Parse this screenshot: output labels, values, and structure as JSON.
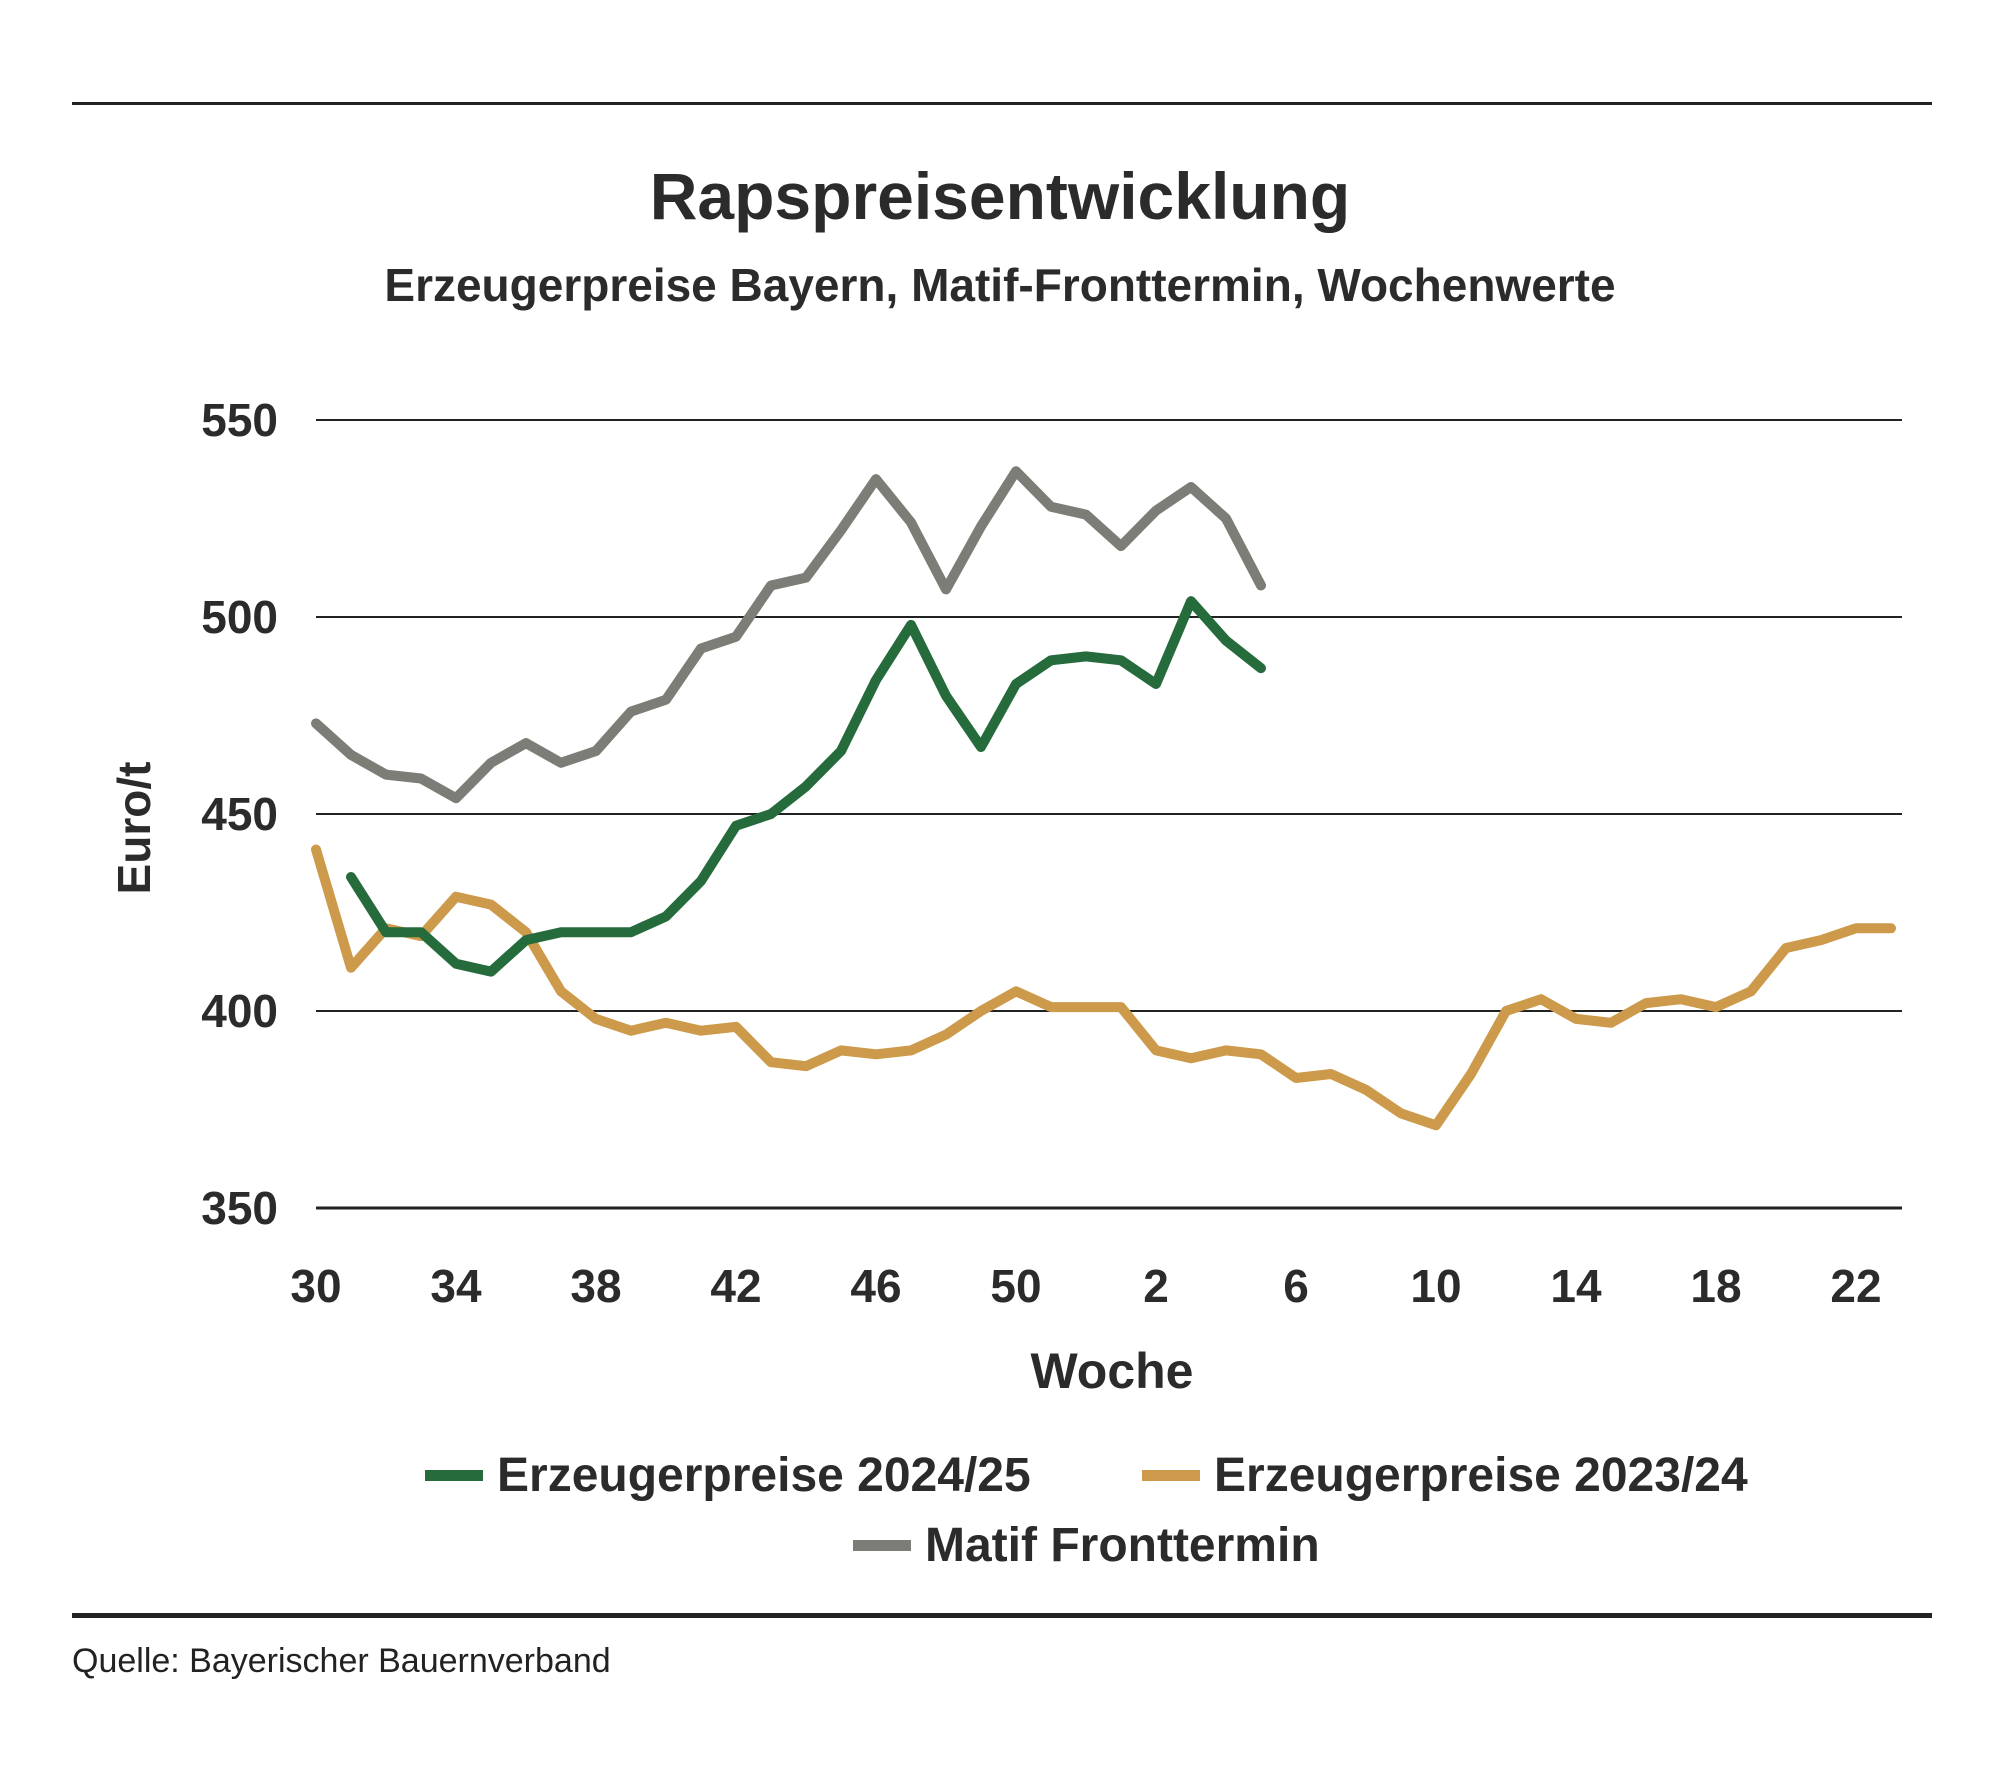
{
  "title": "Rapspreisentwicklung",
  "subtitle": "Erzeugerpreise Bayern, Matif-Fronttermin, Wochenwerte",
  "source": "Quelle: Bayerischer Bauernverband",
  "chart_data": {
    "type": "line",
    "title": "Rapspreisentwicklung",
    "subtitle": "Erzeugerpreise Bayern, Matif-Fronttermin, Wochenwerte",
    "xlabel": "Woche",
    "ylabel": "Euro/t",
    "ylim": [
      350,
      550
    ],
    "yticks": [
      350,
      400,
      450,
      500,
      550
    ],
    "xtick_labels": [
      "30",
      "34",
      "38",
      "42",
      "46",
      "50",
      "2",
      "6",
      "10",
      "14",
      "18",
      "22"
    ],
    "grid": "horizontal",
    "legend_position": "bottom",
    "series": [
      {
        "name": "Erzeugerpreise 2024/25",
        "color": "#266b3c",
        "x": [
          "31",
          "32",
          "33",
          "34",
          "35",
          "36",
          "37",
          "38",
          "39",
          "40",
          "41",
          "42",
          "43",
          "44",
          "45",
          "46",
          "47",
          "48",
          "49",
          "50",
          "51",
          "52",
          "1",
          "2",
          "3",
          "4",
          "5"
        ],
        "values": [
          434,
          420,
          420,
          412,
          410,
          418,
          420,
          420,
          420,
          424,
          433,
          447,
          450,
          457,
          466,
          484,
          498,
          480,
          467,
          483,
          489,
          490,
          489,
          483,
          504,
          494,
          487
        ]
      },
      {
        "name": "Erzeugerpreise 2023/24",
        "color": "#cc9a4a",
        "x": [
          "30",
          "31",
          "32",
          "33",
          "34",
          "35",
          "36",
          "37",
          "38",
          "39",
          "40",
          "41",
          "42",
          "43",
          "44",
          "45",
          "46",
          "47",
          "48",
          "49",
          "50",
          "51",
          "52",
          "1",
          "2",
          "3",
          "4",
          "5",
          "6",
          "7",
          "8",
          "9",
          "10",
          "11",
          "12",
          "13",
          "14",
          "15",
          "16",
          "17",
          "18",
          "19",
          "20",
          "21",
          "22",
          "23"
        ],
        "values": [
          441,
          411,
          421,
          419,
          429,
          427,
          420,
          405,
          398,
          395,
          397,
          395,
          396,
          387,
          386,
          390,
          389,
          390,
          394,
          400,
          405,
          401,
          401,
          401,
          390,
          388,
          390,
          389,
          383,
          384,
          380,
          374,
          371,
          384,
          400,
          403,
          398,
          397,
          402,
          403,
          401,
          405,
          416,
          418,
          421,
          421
        ]
      },
      {
        "name": "Matif Fronttermin",
        "color": "#7c7d76",
        "x": [
          "30",
          "31",
          "32",
          "33",
          "34",
          "35",
          "36",
          "37",
          "38",
          "39",
          "40",
          "41",
          "42",
          "43",
          "44",
          "45",
          "46",
          "47",
          "48",
          "49",
          "50",
          "51",
          "52",
          "1",
          "2",
          "3",
          "4",
          "5"
        ],
        "values": [
          473,
          465,
          460,
          459,
          454,
          463,
          468,
          463,
          466,
          476,
          479,
          492,
          495,
          508,
          510,
          522,
          535,
          524,
          507,
          523,
          537,
          528,
          526,
          518,
          527,
          533,
          525,
          508
        ]
      }
    ]
  }
}
